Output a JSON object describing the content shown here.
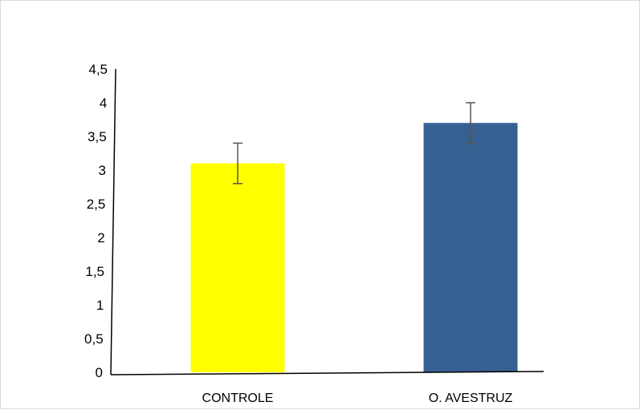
{
  "chart_data": {
    "type": "bar",
    "title": "",
    "xlabel": "",
    "ylabel": "",
    "categories": [
      "CONTROLE",
      "O. AVESTRUZ"
    ],
    "values": [
      3.1,
      3.7
    ],
    "error": [
      0.3,
      0.3
    ],
    "bar_colors": [
      "#FFFF00",
      "#376092"
    ],
    "ylim": [
      0,
      4.5
    ],
    "yticks": [
      "0",
      "0,5",
      "1",
      "1,5",
      "2",
      "2,5",
      "3",
      "3,5",
      "4",
      "4,5"
    ],
    "grid": false,
    "legend": "none"
  }
}
